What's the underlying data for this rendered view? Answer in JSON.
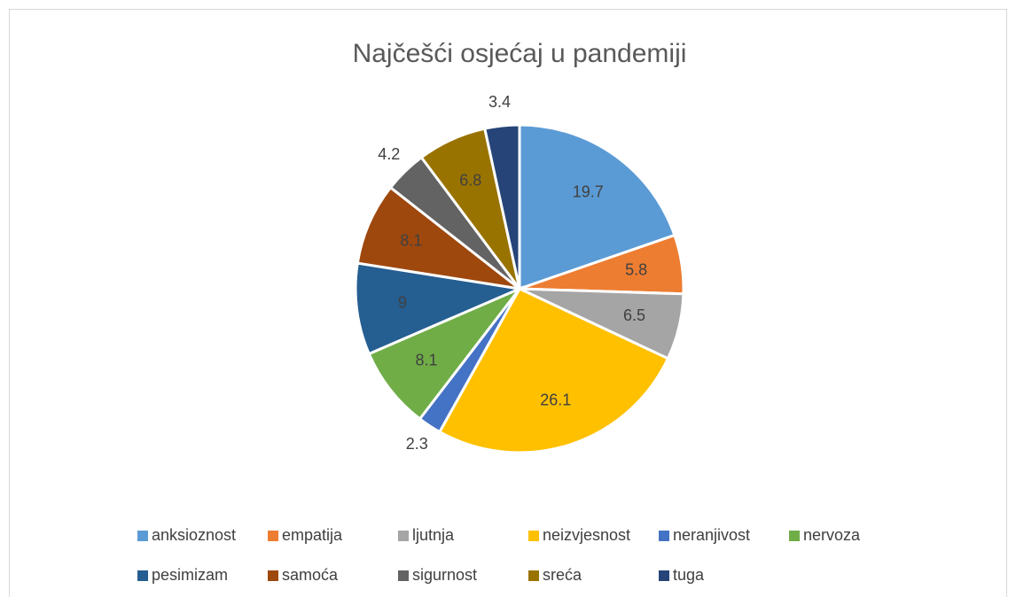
{
  "chart_data": {
    "type": "pie",
    "title": "Najčešći osjećaj u pandemiji",
    "categories": [
      "anksioznost",
      "empatija",
      "ljutnja",
      "neizvjesnost",
      "neranjivost",
      "nervoza",
      "pesimizam",
      "samoća",
      "sigurnost",
      "sreća",
      "tuga"
    ],
    "values": [
      19.7,
      5.8,
      6.5,
      26.1,
      2.3,
      8.1,
      9,
      8.1,
      4.2,
      6.8,
      3.4
    ],
    "colors": [
      "#5B9BD5",
      "#ED7D31",
      "#A5A5A5",
      "#FFC000",
      "#4472C4",
      "#70AD47",
      "#255E91",
      "#9E480E",
      "#636363",
      "#997300",
      "#264478"
    ],
    "legend": "bottom"
  }
}
